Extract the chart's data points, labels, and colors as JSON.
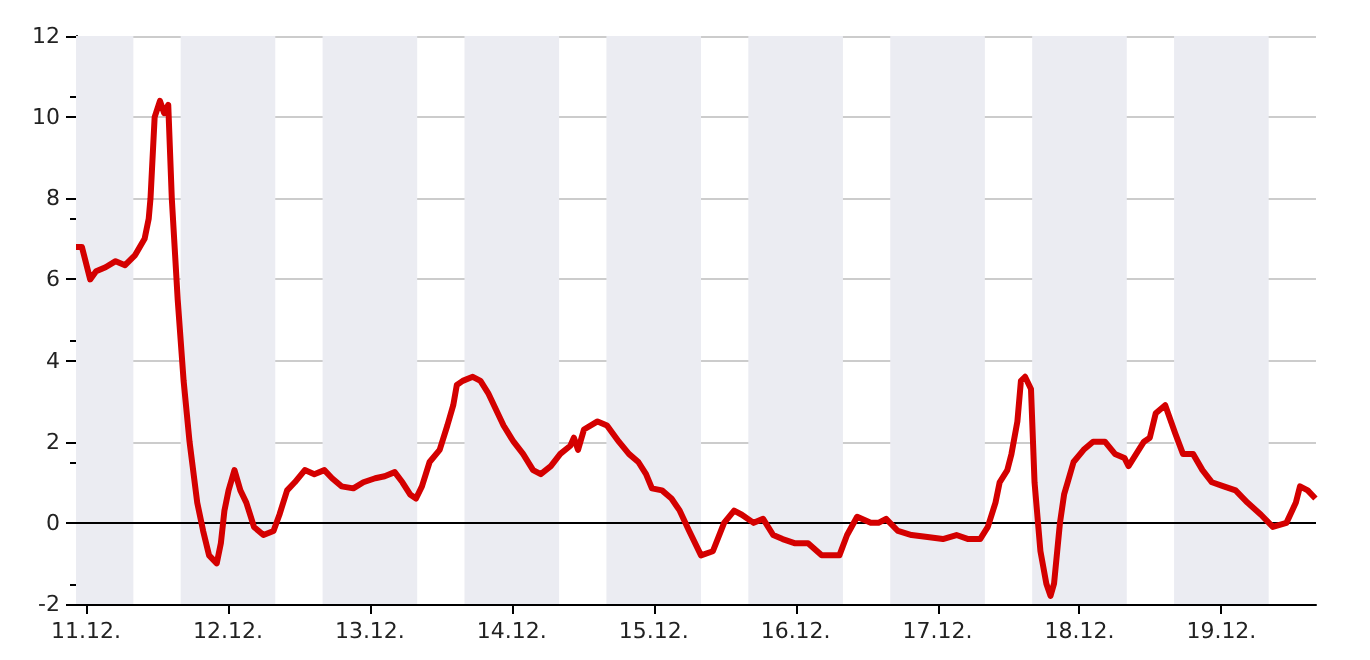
{
  "chart_data": {
    "type": "line",
    "x": [
      "--12-10T22:18",
      "--12-10T23:18",
      "--12-11T00:42",
      "--12-11T01:42",
      "--12-11T03:18",
      "--12-11T05:00",
      "--12-11T06:36",
      "--12-11T08:18",
      "--12-11T09:54",
      "--12-11T10:36",
      "--12-11T10:54",
      "--12-11T11:36",
      "--12-11T12:30",
      "--12-11T13:12",
      "--12-11T13:54",
      "--12-11T14:30",
      "--12-11T15:30",
      "--12-11T16:30",
      "--12-11T17:30",
      "--12-11T18:48",
      "--12-11T19:48",
      "--12-11T20:48",
      "--12-11T22:06",
      "--12-11T22:48",
      "--12-11T23:24",
      "--12-12T00:06",
      "--12-12T01:06",
      "--12-12T02:06",
      "--12-12T03:06",
      "--12-12T04:24",
      "--12-12T06:00",
      "--12-12T07:42",
      "--12-12T08:42",
      "--12-12T10:00",
      "--12-12T11:18",
      "--12-12T13:00",
      "--12-12T14:36",
      "--12-12T16:18",
      "--12-12T17:36",
      "--12-12T19:12",
      "--12-12T21:12",
      "--12-12T22:54",
      "--12-13T00:54",
      "--12-13T02:30",
      "--12-13T04:12",
      "--12-13T05:30",
      "--12-13T06:48",
      "--12-13T07:48",
      "--12-13T08:48",
      "--12-13T10:06",
      "--12-13T11:48",
      "--12-13T13:06",
      "--12-13T14:06",
      "--12-13T14:42",
      "--12-13T15:42",
      "--12-13T17:24",
      "--12-13T18:42",
      "--12-13T20:00",
      "--12-13T21:18",
      "--12-13T22:36",
      "--12-14T00:18",
      "--12-14T01:54",
      "--12-14T03:36",
      "--12-14T04:54",
      "--12-14T06:36",
      "--12-14T08:12",
      "--12-14T09:54",
      "--12-14T10:30",
      "--12-14T11:12",
      "--12-14T12:12",
      "--12-14T14:30",
      "--12-14T16:06",
      "--12-14T18:06",
      "--12-14T19:48",
      "--12-14T21:24",
      "--12-14T22:42",
      "--12-14T23:42",
      "--12-15T01:24",
      "--12-15T03:00",
      "--12-15T04:24",
      "--12-15T06:00",
      "--12-15T08:00",
      "--12-15T10:00",
      "--12-15T11:54",
      "--12-15T13:36",
      "--12-15T14:54",
      "--12-15T16:54",
      "--12-15T18:30",
      "--12-15T20:12",
      "--12-15T21:48",
      "--12-15T23:48",
      "--12-16T02:06",
      "--12-16T04:24",
      "--12-16T07:24",
      "--12-16T08:42",
      "--12-16T10:24",
      "--12-16T12:42",
      "--12-16T14:00",
      "--12-16T15:18",
      "--12-16T17:18",
      "--12-16T19:36",
      "--12-16T22:18",
      "--12-17T00:54",
      "--12-17T03:12",
      "--12-17T05:12",
      "--12-17T07:12",
      "--12-17T08:30",
      "--12-17T09:48",
      "--12-17T10:30",
      "--12-17T11:48",
      "--12-17T12:30",
      "--12-17T13:30",
      "--12-17T14:06",
      "--12-17T14:48",
      "--12-17T15:48",
      "--12-17T16:24",
      "--12-17T17:24",
      "--12-17T18:24",
      "--12-17T19:06",
      "--12-17T19:42",
      "--12-17T20:42",
      "--12-17T21:24",
      "--12-17T22:00",
      "--12-17T23:00",
      "--12-18T00:42",
      "--12-18T02:18",
      "--12-18T04:18",
      "--12-18T06:00",
      "--12-18T07:36",
      "--12-18T08:18",
      "--12-18T09:36",
      "--12-18T10:54",
      "--12-18T11:54",
      "--12-18T12:54",
      "--12-18T14:30",
      "--12-18T16:12",
      "--12-18T17:30",
      "--12-18T19:12",
      "--12-18T20:48",
      "--12-18T22:24",
      "--12-19T00:24",
      "--12-19T02:24",
      "--12-19T04:24",
      "--12-19T06:42",
      "--12-19T08:42",
      "--12-19T11:00",
      "--12-19T12:36",
      "--12-19T13:18",
      "--12-19T14:36",
      "--12-19T15:54"
    ],
    "series": [
      {
        "color": "#d40000",
        "values": [
          6.8,
          6.8,
          6.0,
          6.2,
          6.3,
          6.45,
          6.35,
          6.6,
          7.0,
          7.5,
          8.0,
          10.0,
          10.4,
          10.1,
          10.3,
          8.0,
          5.5,
          3.5,
          2.0,
          0.5,
          -0.2,
          -0.8,
          -1.0,
          -0.5,
          0.3,
          0.8,
          1.3,
          0.8,
          0.5,
          -0.1,
          -0.3,
          -0.2,
          0.2,
          0.8,
          1.0,
          1.3,
          1.2,
          1.3,
          1.1,
          0.9,
          0.85,
          1.0,
          1.1,
          1.15,
          1.25,
          1.0,
          0.7,
          0.6,
          0.9,
          1.5,
          1.8,
          2.4,
          2.9,
          3.4,
          3.5,
          3.6,
          3.5,
          3.2,
          2.8,
          2.4,
          2.0,
          1.7,
          1.3,
          1.2,
          1.4,
          1.7,
          1.9,
          2.1,
          1.8,
          2.3,
          2.5,
          2.4,
          2.0,
          1.7,
          1.5,
          1.2,
          0.85,
          0.8,
          0.6,
          0.3,
          -0.2,
          -0.8,
          -0.7,
          0.0,
          0.3,
          0.2,
          0.0,
          0.1,
          -0.3,
          -0.4,
          -0.5,
          -0.5,
          -0.8,
          -0.8,
          -0.3,
          0.15,
          0.0,
          0.0,
          0.1,
          -0.2,
          -0.3,
          -0.35,
          -0.4,
          -0.3,
          -0.4,
          -0.4,
          -0.1,
          0.5,
          1.0,
          1.3,
          1.7,
          2.5,
          3.5,
          3.6,
          3.3,
          1.0,
          -0.7,
          -1.5,
          -1.8,
          -1.5,
          0.0,
          0.7,
          1.0,
          1.5,
          1.8,
          2.0,
          2.0,
          1.7,
          1.6,
          1.4,
          1.7,
          2.0,
          2.1,
          2.7,
          2.9,
          2.2,
          1.7,
          1.7,
          1.3,
          1.0,
          0.9,
          0.8,
          0.5,
          0.2,
          -0.1,
          0.0,
          0.5,
          0.9,
          0.8,
          0.6
        ]
      }
    ],
    "xlim": [
      "--12-10T22:18",
      "--12-19T16:00"
    ],
    "xticks": [
      {
        "value": "--12-11",
        "label": "11.12."
      },
      {
        "value": "--12-12",
        "label": "12.12."
      },
      {
        "value": "--12-13",
        "label": "13.12."
      },
      {
        "value": "--12-14",
        "label": "14.12."
      },
      {
        "value": "--12-15",
        "label": "15.12."
      },
      {
        "value": "--12-16",
        "label": "16.12."
      },
      {
        "value": "--12-17",
        "label": "17.12."
      },
      {
        "value": "--12-18",
        "label": "18.12."
      },
      {
        "value": "--12-19",
        "label": "19.12."
      }
    ],
    "ylim": [
      -2,
      12
    ],
    "yticks": [
      -2,
      0,
      2,
      4,
      6,
      8,
      10,
      12
    ],
    "grid": true,
    "marker": "none",
    "line_style": "solid",
    "ref_lines": [
      {
        "axis": "y",
        "value": 0,
        "color": "#000000"
      }
    ],
    "bands": [
      {
        "axis": "x",
        "from": "--12-10T22:18",
        "to": "--12-11T08:00",
        "color": "#ebecf2"
      },
      {
        "axis": "x",
        "from": "--12-11T16:00",
        "to": "--12-12T08:00",
        "color": "#ebecf2"
      },
      {
        "axis": "x",
        "from": "--12-12T16:00",
        "to": "--12-13T08:00",
        "color": "#ebecf2"
      },
      {
        "axis": "x",
        "from": "--12-13T16:00",
        "to": "--12-14T08:00",
        "color": "#ebecf2"
      },
      {
        "axis": "x",
        "from": "--12-14T16:00",
        "to": "--12-15T08:00",
        "color": "#ebecf2"
      },
      {
        "axis": "x",
        "from": "--12-15T16:00",
        "to": "--12-16T08:00",
        "color": "#ebecf2"
      },
      {
        "axis": "x",
        "from": "--12-16T16:00",
        "to": "--12-17T08:00",
        "color": "#ebecf2"
      },
      {
        "axis": "x",
        "from": "--12-17T16:00",
        "to": "--12-18T08:00",
        "color": "#ebecf2"
      },
      {
        "axis": "x",
        "from": "--12-18T16:00",
        "to": "--12-19T08:00",
        "color": "#ebecf2"
      }
    ]
  }
}
